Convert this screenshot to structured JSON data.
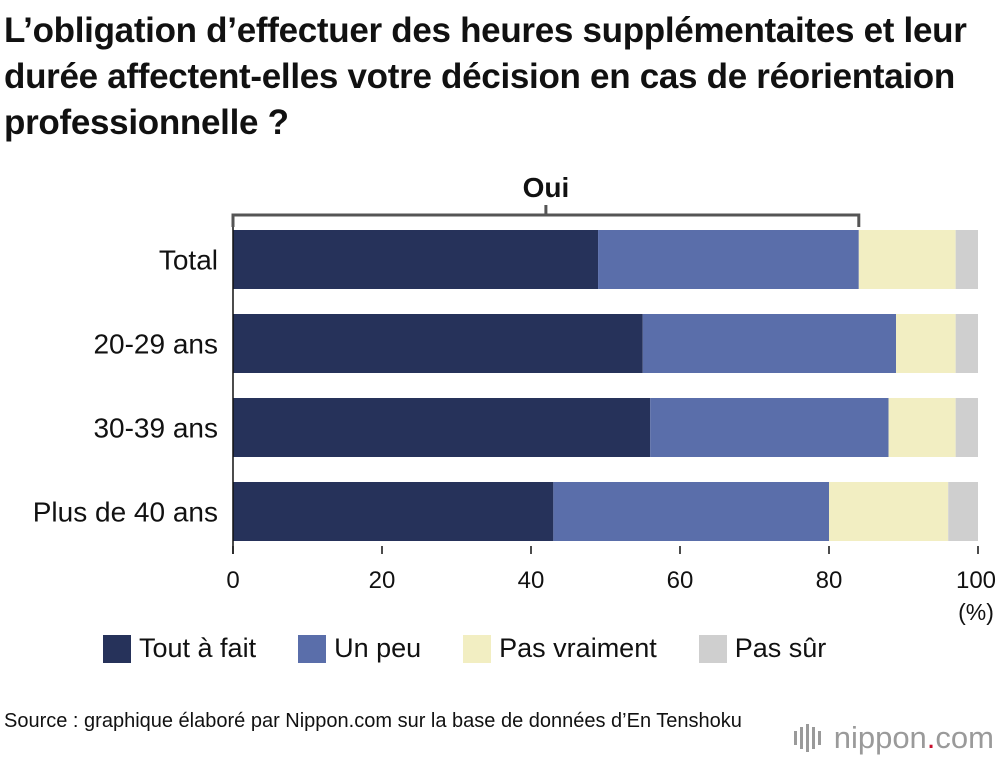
{
  "title": "L’obligation d’effectuer des heures supplémentaites et leur durée affectent-elles votre décision en cas de réorientaion professionnelle ?",
  "chart_data": {
    "type": "bar",
    "orientation": "horizontal",
    "stacked": true,
    "categories": [
      "Total",
      "20-29 ans",
      "30-39 ans",
      "Plus de 40 ans"
    ],
    "series": [
      {
        "name": "Tout à fait",
        "color": "#26325a",
        "values": [
          49,
          55,
          56,
          43
        ]
      },
      {
        "name": "Un peu",
        "color": "#5a6eaa",
        "values": [
          35,
          34,
          32,
          37
        ]
      },
      {
        "name": "Pas vraiment",
        "color": "#f2eec2",
        "values": [
          13,
          8,
          9,
          16
        ]
      },
      {
        "name": "Pas sûr",
        "color": "#cfcfcf",
        "values": [
          3,
          3,
          3,
          4
        ]
      }
    ],
    "xlim": [
      0,
      100
    ],
    "xticks": [
      "0",
      "20",
      "40",
      "60",
      "80",
      "100"
    ],
    "unit_label": "(%)",
    "bracket_label": "Oui",
    "bracket_range": [
      0,
      84
    ],
    "grid": false,
    "legend_position": "bottom"
  },
  "legend": [
    {
      "label": "Tout à fait",
      "color": "#26325a"
    },
    {
      "label": "Un peu",
      "color": "#5a6eaa"
    },
    {
      "label": "Pas vraiment",
      "color": "#f2eec2"
    },
    {
      "label": "Pas sûr",
      "color": "#cfcfcf"
    }
  ],
  "source": "Source : graphique élaboré par Nippon.com sur la base de données d’En Tenshoku",
  "logo": {
    "text_main": "nippon",
    "text_dot": ".",
    "text_tail": "com"
  }
}
